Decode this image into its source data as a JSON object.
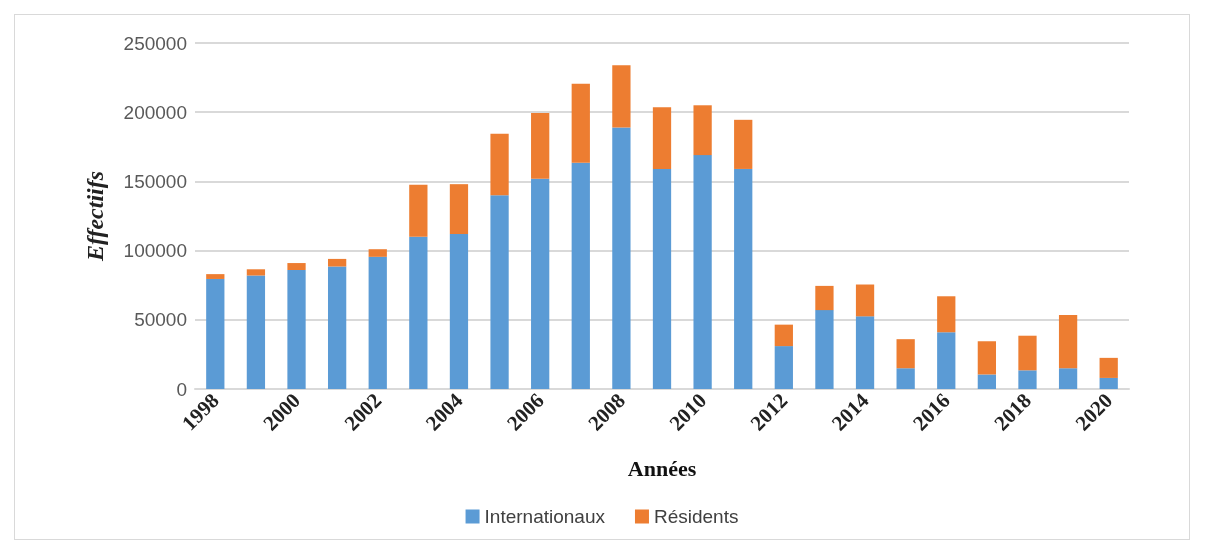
{
  "chart_data": {
    "type": "bar",
    "stacked": true,
    "xlabel": "Années",
    "ylabel": "Effectiifs",
    "categories": [
      "1998",
      null,
      "2000",
      null,
      "2002",
      null,
      "2004",
      null,
      "2006",
      null,
      "2008",
      null,
      "2010",
      null,
      "2012",
      null,
      "2014",
      null,
      "2016",
      null,
      "2018",
      null,
      "2020"
    ],
    "series": [
      {
        "name": "Internationaux",
        "color": "#5b9bd5",
        "values": [
          79500,
          82000,
          86000,
          88500,
          95500,
          110000,
          112000,
          140000,
          152000,
          163500,
          189000,
          159000,
          169000,
          159000,
          31000,
          57000,
          52500,
          15000,
          41000,
          10500,
          13500,
          15000,
          8000
        ]
      },
      {
        "name": "Résidents",
        "color": "#ed7d31",
        "values": [
          3500,
          4500,
          5000,
          5500,
          5500,
          37500,
          36000,
          44500,
          47500,
          57000,
          45000,
          44500,
          36000,
          35500,
          15500,
          17500,
          23000,
          21000,
          26000,
          24000,
          25000,
          38500,
          14500
        ]
      }
    ],
    "ylim": [
      0,
      250000
    ],
    "yticks": [
      0,
      50000,
      100000,
      150000,
      200000,
      250000
    ],
    "grid": "y",
    "legend": "bottom"
  }
}
